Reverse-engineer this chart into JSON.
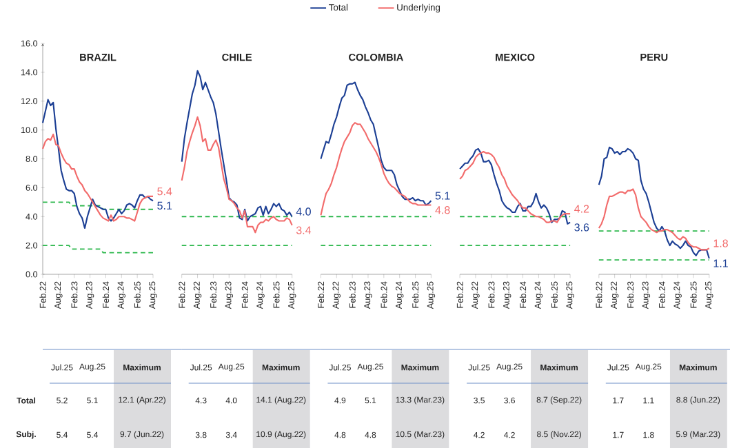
{
  "chart_data": [
    {
      "type": "line",
      "title": "BRAZIL",
      "x": [
        "2022-02",
        "2022-03",
        "2022-04",
        "2022-05",
        "2022-06",
        "2022-07",
        "2022-08",
        "2022-09",
        "2022-10",
        "2022-11",
        "2022-12",
        "2023-01",
        "2023-02",
        "2023-03",
        "2023-04",
        "2023-05",
        "2023-06",
        "2023-07",
        "2023-08",
        "2023-09",
        "2023-10",
        "2023-11",
        "2023-12",
        "2024-01",
        "2024-02",
        "2024-03",
        "2024-04",
        "2024-05",
        "2024-06",
        "2024-07",
        "2024-08",
        "2024-09",
        "2024-10",
        "2024-11",
        "2024-12",
        "2025-01",
        "2025-02",
        "2025-03",
        "2025-04",
        "2025-05",
        "2025-06",
        "2025-07",
        "2025-08"
      ],
      "xlim": [
        "2022-02",
        "2025-08"
      ],
      "xticks": [
        {
          "value": "2022-02",
          "label": "Feb.22"
        },
        {
          "value": "2022-08",
          "label": "Aug.22"
        },
        {
          "value": "2023-02",
          "label": "Feb.23"
        },
        {
          "value": "2023-08",
          "label": "Aug.23"
        },
        {
          "value": "2024-02",
          "label": "Feb.24"
        },
        {
          "value": "2024-08",
          "label": "Aug.24"
        },
        {
          "value": "2025-02",
          "label": "Feb.25"
        },
        {
          "value": "2025-08",
          "label": "Aug.25"
        }
      ],
      "ylim": [
        0,
        16
      ],
      "yticks": [
        {
          "value": 0,
          "label": "0.0"
        },
        {
          "value": 2,
          "label": "2.0"
        },
        {
          "value": 4,
          "label": "4.0"
        },
        {
          "value": 6,
          "label": "6.0"
        },
        {
          "value": 8,
          "label": "8.0"
        },
        {
          "value": 10,
          "label": "10.0"
        },
        {
          "value": 12,
          "label": "12.0"
        },
        {
          "value": 14,
          "label": "14.0"
        },
        {
          "value": 16,
          "label": "16.0"
        }
      ],
      "series": [
        {
          "type": "line",
          "color": "#2db84d",
          "line_style": "dashed",
          "x": [
            "2022-02",
            "2022-12",
            "2023-01",
            "2023-12",
            "2024-01",
            "2025-08"
          ],
          "values": [
            5,
            5,
            4.75,
            4.75,
            4.5,
            4.5
          ]
        },
        {
          "type": "line",
          "color": "#2db84d",
          "line_style": "dashed",
          "x": [
            "2022-02",
            "2022-12",
            "2023-01",
            "2023-12",
            "2024-01",
            "2025-08"
          ],
          "values": [
            2,
            2,
            1.75,
            1.75,
            1.5,
            1.5
          ]
        },
        {
          "color": "#1c3f94",
          "values": [
            10.5,
            11.3,
            12.1,
            11.7,
            11.9,
            10.1,
            8.7,
            7.2,
            6.5,
            5.9,
            5.8,
            5.8,
            5.6,
            4.7,
            4.2,
            3.9,
            3.2,
            4.0,
            4.6,
            5.2,
            4.8,
            4.7,
            4.6,
            4.5,
            4.5,
            3.9,
            3.7,
            3.9,
            4.2,
            4.5,
            4.2,
            4.4,
            4.8,
            4.9,
            4.8,
            4.6,
            5.1,
            5.5,
            5.5,
            5.3,
            5.4,
            5.2,
            5.1
          ],
          "value_labels": [
            null,
            null,
            null,
            null,
            null,
            null,
            null,
            null,
            null,
            null,
            null,
            null,
            null,
            null,
            null,
            null,
            null,
            null,
            null,
            null,
            null,
            null,
            null,
            null,
            null,
            null,
            null,
            null,
            null,
            null,
            null,
            null,
            null,
            null,
            null,
            null,
            null,
            null,
            null,
            null,
            null,
            null,
            "5.1"
          ]
        },
        {
          "color": "#f26b6b",
          "values": [
            8.7,
            9.2,
            9.4,
            9.3,
            9.7,
            9.0,
            8.9,
            8.4,
            8.0,
            7.7,
            7.6,
            7.3,
            7.3,
            6.8,
            6.4,
            6.2,
            5.8,
            5.6,
            5.3,
            5.0,
            4.7,
            4.4,
            4.1,
            3.9,
            3.8,
            3.7,
            4.1,
            3.7,
            3.8,
            4.0,
            4.0,
            4.0,
            3.9,
            3.9,
            3.8,
            3.7,
            4.3,
            4.9,
            5.2,
            5.3,
            5.4,
            5.4,
            5.4
          ],
          "value_labels": [
            null,
            null,
            null,
            null,
            null,
            null,
            null,
            null,
            null,
            null,
            null,
            null,
            null,
            null,
            null,
            null,
            null,
            null,
            null,
            null,
            null,
            null,
            null,
            null,
            null,
            null,
            null,
            null,
            null,
            null,
            null,
            null,
            null,
            null,
            null,
            null,
            null,
            null,
            null,
            null,
            null,
            null,
            "5.4"
          ]
        }
      ],
      "annotations": [
        "Total",
        "Subj.",
        "Jul.25",
        "Aug.25",
        "Maximum",
        "5.2",
        "5.1",
        "12.1 (Apr.22)",
        "5.4",
        "5.4",
        "9.7 (Jun.22)"
      ]
    },
    {
      "type": "line",
      "title": "CHILE",
      "x": [
        "2022-02",
        "2022-03",
        "2022-04",
        "2022-05",
        "2022-06",
        "2022-07",
        "2022-08",
        "2022-09",
        "2022-10",
        "2022-11",
        "2022-12",
        "2023-01",
        "2023-02",
        "2023-03",
        "2023-04",
        "2023-05",
        "2023-06",
        "2023-07",
        "2023-08",
        "2023-09",
        "2023-10",
        "2023-11",
        "2023-12",
        "2024-01",
        "2024-02",
        "2024-03",
        "2024-04",
        "2024-05",
        "2024-06",
        "2024-07",
        "2024-08",
        "2024-09",
        "2024-10",
        "2024-11",
        "2024-12",
        "2025-01",
        "2025-02",
        "2025-03",
        "2025-04",
        "2025-05",
        "2025-06",
        "2025-07",
        "2025-08"
      ],
      "xlim": [
        "2022-02",
        "2025-08"
      ],
      "xticks": [
        {
          "value": "2022-02",
          "label": "Feb.22"
        },
        {
          "value": "2022-08",
          "label": "Aug.22"
        },
        {
          "value": "2023-02",
          "label": "Feb.23"
        },
        {
          "value": "2023-08",
          "label": "Aug.23"
        },
        {
          "value": "2024-02",
          "label": "Feb.24"
        },
        {
          "value": "2024-08",
          "label": "Aug.24"
        },
        {
          "value": "2025-02",
          "label": "Feb.25"
        },
        {
          "value": "2025-08",
          "label": "Aug.25"
        }
      ],
      "ylim": [
        0,
        16
      ],
      "tick_labels": "x",
      "series": [
        {
          "color": "#1c3f94",
          "values": [
            7.8,
            9.4,
            10.5,
            11.5,
            12.5,
            13.1,
            14.1,
            13.7,
            12.8,
            13.3,
            12.8,
            12.3,
            11.9,
            11.1,
            9.9,
            8.7,
            7.6,
            6.5,
            5.3,
            5.1,
            5.0,
            4.8,
            3.9,
            3.8,
            4.5,
            3.7,
            4.0,
            4.1,
            4.2,
            4.6,
            4.7,
            4.1,
            4.7,
            4.2,
            4.5,
            4.9,
            4.7,
            4.9,
            4.5,
            4.4,
            4.1,
            4.3,
            4.0
          ],
          "value_labels": [
            null,
            null,
            null,
            null,
            null,
            null,
            null,
            null,
            null,
            null,
            null,
            null,
            null,
            null,
            null,
            null,
            null,
            null,
            null,
            null,
            null,
            null,
            null,
            null,
            null,
            null,
            null,
            null,
            null,
            null,
            null,
            null,
            null,
            null,
            null,
            null,
            null,
            null,
            null,
            null,
            null,
            null,
            "4.0"
          ]
        },
        {
          "color": "#f26b6b",
          "values": [
            6.5,
            7.4,
            8.5,
            9.2,
            9.8,
            10.3,
            10.9,
            10.3,
            9.2,
            9.4,
            8.6,
            8.6,
            9.0,
            9.3,
            8.8,
            7.7,
            6.6,
            6.0,
            5.2,
            5.1,
            4.9,
            4.6,
            4.4,
            3.9,
            4.4,
            3.3,
            3.3,
            3.3,
            2.9,
            3.4,
            3.6,
            3.6,
            3.8,
            3.7,
            3.9,
            4.0,
            3.8,
            3.7,
            3.7,
            3.7,
            3.9,
            3.8,
            3.4
          ],
          "value_labels": [
            null,
            null,
            null,
            null,
            null,
            null,
            null,
            null,
            null,
            null,
            null,
            null,
            null,
            null,
            null,
            null,
            null,
            null,
            null,
            null,
            null,
            null,
            null,
            null,
            null,
            null,
            null,
            null,
            null,
            null,
            null,
            null,
            null,
            null,
            null,
            null,
            null,
            null,
            null,
            null,
            null,
            null,
            "3.4"
          ]
        }
      ],
      "ref_lines": [
        {
          "axis": "y",
          "value": 4,
          "color": "#2db84d",
          "line_style": "dashed"
        },
        {
          "axis": "y",
          "value": 2,
          "color": "#2db84d",
          "line_style": "dashed"
        }
      ],
      "annotations": [
        "Jul.25",
        "Aug.25",
        "Maximum",
        "4.3",
        "4.0",
        "14.1 (Aug.22)",
        "3.8",
        "3.4",
        "10.9 (Aug.22)"
      ]
    },
    {
      "type": "line",
      "title": "COLOMBIA",
      "x": [
        "2022-02",
        "2022-03",
        "2022-04",
        "2022-05",
        "2022-06",
        "2022-07",
        "2022-08",
        "2022-09",
        "2022-10",
        "2022-11",
        "2022-12",
        "2023-01",
        "2023-02",
        "2023-03",
        "2023-04",
        "2023-05",
        "2023-06",
        "2023-07",
        "2023-08",
        "2023-09",
        "2023-10",
        "2023-11",
        "2023-12",
        "2024-01",
        "2024-02",
        "2024-03",
        "2024-04",
        "2024-05",
        "2024-06",
        "2024-07",
        "2024-08",
        "2024-09",
        "2024-10",
        "2024-11",
        "2024-12",
        "2025-01",
        "2025-02",
        "2025-03",
        "2025-04",
        "2025-05",
        "2025-06",
        "2025-07",
        "2025-08"
      ],
      "xlim": [
        "2022-02",
        "2025-08"
      ],
      "xticks": [
        {
          "value": "2022-02",
          "label": "Feb.22"
        },
        {
          "value": "2022-08",
          "label": "Aug.22"
        },
        {
          "value": "2023-02",
          "label": "Feb.23"
        },
        {
          "value": "2023-08",
          "label": "Aug.23"
        },
        {
          "value": "2024-02",
          "label": "Feb.24"
        },
        {
          "value": "2024-08",
          "label": "Aug.24"
        },
        {
          "value": "2025-02",
          "label": "Feb.25"
        },
        {
          "value": "2025-08",
          "label": "Aug.25"
        }
      ],
      "ylim": [
        0,
        16
      ],
      "tick_labels": "x",
      "legend": "top",
      "series": [
        {
          "name": "Total",
          "color": "#1c3f94",
          "values": [
            8.0,
            8.6,
            9.2,
            9.1,
            9.7,
            10.4,
            10.9,
            11.6,
            12.2,
            12.4,
            13.1,
            13.2,
            13.2,
            13.3,
            12.8,
            12.4,
            12.1,
            11.6,
            11.2,
            10.7,
            10.4,
            9.6,
            8.8,
            7.9,
            7.4,
            7.2,
            7.2,
            7.2,
            6.9,
            6.2,
            5.8,
            5.4,
            5.2,
            5.2,
            5.2,
            5.3,
            5.1,
            5.2,
            5.1,
            5.1,
            4.8,
            4.9,
            5.1
          ],
          "value_labels": [
            null,
            null,
            null,
            null,
            null,
            null,
            null,
            null,
            null,
            null,
            null,
            null,
            null,
            null,
            null,
            null,
            null,
            null,
            null,
            null,
            null,
            null,
            null,
            null,
            null,
            null,
            null,
            null,
            null,
            null,
            null,
            null,
            null,
            null,
            null,
            null,
            null,
            null,
            null,
            null,
            null,
            null,
            "5.1"
          ]
        },
        {
          "name": "Underlying",
          "color": "#f26b6b",
          "values": [
            4.1,
            4.9,
            5.6,
            5.9,
            6.3,
            6.9,
            7.4,
            8.1,
            8.7,
            9.2,
            9.5,
            9.8,
            10.3,
            10.5,
            10.4,
            10.4,
            10.1,
            9.8,
            9.4,
            9.1,
            8.8,
            8.5,
            8.1,
            7.6,
            7.0,
            6.6,
            6.3,
            6.1,
            6.0,
            5.8,
            5.6,
            5.5,
            5.4,
            5.2,
            5.0,
            4.9,
            4.9,
            4.8,
            4.8,
            4.8,
            4.8,
            4.8,
            4.8
          ],
          "value_labels": [
            null,
            null,
            null,
            null,
            null,
            null,
            null,
            null,
            null,
            null,
            null,
            null,
            null,
            null,
            null,
            null,
            null,
            null,
            null,
            null,
            null,
            null,
            null,
            null,
            null,
            null,
            null,
            null,
            null,
            null,
            null,
            null,
            null,
            null,
            null,
            null,
            null,
            null,
            null,
            null,
            null,
            null,
            "4.8"
          ]
        }
      ],
      "ref_lines": [
        {
          "axis": "y",
          "value": 4,
          "color": "#2db84d",
          "line_style": "dashed"
        },
        {
          "axis": "y",
          "value": 2,
          "color": "#2db84d",
          "line_style": "dashed"
        }
      ],
      "annotations": [
        "Jul.25",
        "Aug.25",
        "Maximum",
        "4.9",
        "5.1",
        "13.3 (Mar.23)",
        "4.8",
        "4.8",
        "10.5 (Mar.23)"
      ]
    },
    {
      "type": "line",
      "title": "MEXICO",
      "x": [
        "2022-02",
        "2022-03",
        "2022-04",
        "2022-05",
        "2022-06",
        "2022-07",
        "2022-08",
        "2022-09",
        "2022-10",
        "2022-11",
        "2022-12",
        "2023-01",
        "2023-02",
        "2023-03",
        "2023-04",
        "2023-05",
        "2023-06",
        "2023-07",
        "2023-08",
        "2023-09",
        "2023-10",
        "2023-11",
        "2023-12",
        "2024-01",
        "2024-02",
        "2024-03",
        "2024-04",
        "2024-05",
        "2024-06",
        "2024-07",
        "2024-08",
        "2024-09",
        "2024-10",
        "2024-11",
        "2024-12",
        "2025-01",
        "2025-02",
        "2025-03",
        "2025-04",
        "2025-05",
        "2025-06",
        "2025-07",
        "2025-08"
      ],
      "xlim": [
        "2022-02",
        "2025-08"
      ],
      "xticks": [
        {
          "value": "2022-02",
          "label": "Feb.22"
        },
        {
          "value": "2022-08",
          "label": "Aug.22"
        },
        {
          "value": "2023-02",
          "label": "Feb.23"
        },
        {
          "value": "2023-08",
          "label": "Aug.23"
        },
        {
          "value": "2024-02",
          "label": "Feb.24"
        },
        {
          "value": "2024-08",
          "label": "Aug.24"
        },
        {
          "value": "2025-02",
          "label": "Feb.25"
        },
        {
          "value": "2025-08",
          "label": "Aug.25"
        }
      ],
      "ylim": [
        0,
        16
      ],
      "tick_labels": "x",
      "series": [
        {
          "color": "#1c3f94",
          "values": [
            7.3,
            7.5,
            7.7,
            7.7,
            8.0,
            8.2,
            8.6,
            8.7,
            8.4,
            7.8,
            7.8,
            7.9,
            7.6,
            6.9,
            6.3,
            5.8,
            5.1,
            4.8,
            4.6,
            4.5,
            4.3,
            4.3,
            4.7,
            4.9,
            4.4,
            4.4,
            4.7,
            4.7,
            5.0,
            5.6,
            5.0,
            4.6,
            4.8,
            4.6,
            4.2,
            3.6,
            3.8,
            3.8,
            3.9,
            4.4,
            4.3,
            3.5,
            3.6
          ],
          "value_labels": [
            null,
            null,
            null,
            null,
            null,
            null,
            null,
            null,
            null,
            null,
            null,
            null,
            null,
            null,
            null,
            null,
            null,
            null,
            null,
            null,
            null,
            null,
            null,
            null,
            null,
            null,
            null,
            null,
            null,
            null,
            null,
            null,
            null,
            null,
            null,
            null,
            null,
            null,
            null,
            null,
            null,
            null,
            "3.6"
          ]
        },
        {
          "color": "#f26b6b",
          "values": [
            6.6,
            6.8,
            7.2,
            7.3,
            7.5,
            7.7,
            8.1,
            8.3,
            8.4,
            8.5,
            8.4,
            8.4,
            8.3,
            8.1,
            7.7,
            7.4,
            6.9,
            6.6,
            6.1,
            5.8,
            5.5,
            5.3,
            5.1,
            4.8,
            4.6,
            4.6,
            4.4,
            4.2,
            4.1,
            4.0,
            4.0,
            3.9,
            3.8,
            3.6,
            3.6,
            3.7,
            3.7,
            3.6,
            3.9,
            4.1,
            4.2,
            4.2,
            4.2
          ],
          "value_labels": [
            null,
            null,
            null,
            null,
            null,
            null,
            null,
            null,
            null,
            null,
            null,
            null,
            null,
            null,
            null,
            null,
            null,
            null,
            null,
            null,
            null,
            null,
            null,
            null,
            null,
            null,
            null,
            null,
            null,
            null,
            null,
            null,
            null,
            null,
            null,
            null,
            null,
            null,
            null,
            null,
            null,
            null,
            "4.2"
          ]
        }
      ],
      "ref_lines": [
        {
          "axis": "y",
          "value": 4,
          "color": "#2db84d",
          "line_style": "dashed"
        },
        {
          "axis": "y",
          "value": 2,
          "color": "#2db84d",
          "line_style": "dashed"
        }
      ],
      "annotations": [
        "Jul.25",
        "Aug.25",
        "Maximum",
        "3.5",
        "3.6",
        "8.7 (Sep.22)",
        "4.2",
        "4.2",
        "8.5 (Nov.22)"
      ]
    },
    {
      "type": "line",
      "title": "PERU",
      "x": [
        "2022-02",
        "2022-03",
        "2022-04",
        "2022-05",
        "2022-06",
        "2022-07",
        "2022-08",
        "2022-09",
        "2022-10",
        "2022-11",
        "2022-12",
        "2023-01",
        "2023-02",
        "2023-03",
        "2023-04",
        "2023-05",
        "2023-06",
        "2023-07",
        "2023-08",
        "2023-09",
        "2023-10",
        "2023-11",
        "2023-12",
        "2024-01",
        "2024-02",
        "2024-03",
        "2024-04",
        "2024-05",
        "2024-06",
        "2024-07",
        "2024-08",
        "2024-09",
        "2024-10",
        "2024-11",
        "2024-12",
        "2025-01",
        "2025-02",
        "2025-03",
        "2025-04",
        "2025-05",
        "2025-06",
        "2025-07",
        "2025-08"
      ],
      "xlim": [
        "2022-02",
        "2025-08"
      ],
      "xticks": [
        {
          "value": "2022-02",
          "label": "Feb.22"
        },
        {
          "value": "2022-08",
          "label": "Aug.22"
        },
        {
          "value": "2023-02",
          "label": "Feb.23"
        },
        {
          "value": "2023-08",
          "label": "Aug.23"
        },
        {
          "value": "2024-02",
          "label": "Feb.24"
        },
        {
          "value": "2024-08",
          "label": "Aug.24"
        },
        {
          "value": "2025-02",
          "label": "Feb.25"
        },
        {
          "value": "2025-08",
          "label": "Aug.25"
        }
      ],
      "ylim": [
        0,
        16
      ],
      "tick_labels": "x",
      "series": [
        {
          "color": "#1c3f94",
          "values": [
            6.2,
            6.8,
            8.0,
            8.1,
            8.8,
            8.7,
            8.4,
            8.5,
            8.3,
            8.5,
            8.5,
            8.7,
            8.6,
            8.4,
            8.0,
            7.9,
            6.5,
            5.9,
            5.6,
            5.0,
            4.3,
            3.6,
            3.2,
            3.0,
            3.3,
            3.0,
            2.4,
            2.0,
            2.3,
            2.1,
            2.0,
            1.8,
            2.0,
            2.3,
            2.0,
            1.9,
            1.5,
            1.3,
            1.6,
            1.7,
            1.7,
            1.7,
            1.1
          ],
          "value_labels": [
            null,
            null,
            null,
            null,
            null,
            null,
            null,
            null,
            null,
            null,
            null,
            null,
            null,
            null,
            null,
            null,
            null,
            null,
            null,
            null,
            null,
            null,
            null,
            null,
            null,
            null,
            null,
            null,
            null,
            null,
            null,
            null,
            null,
            null,
            null,
            null,
            null,
            null,
            null,
            null,
            null,
            null,
            "1.1"
          ]
        },
        {
          "color": "#f26b6b",
          "values": [
            3.2,
            3.5,
            4.0,
            4.8,
            5.4,
            5.4,
            5.5,
            5.6,
            5.7,
            5.7,
            5.6,
            5.8,
            5.8,
            5.9,
            5.5,
            4.6,
            4.0,
            3.8,
            3.6,
            3.3,
            3.1,
            3.0,
            2.9,
            3.0,
            3.0,
            3.1,
            3.1,
            3.0,
            2.9,
            2.7,
            2.5,
            2.4,
            2.6,
            2.5,
            2.2,
            2.0,
            1.9,
            1.9,
            1.8,
            1.7,
            1.7,
            1.7,
            1.8
          ],
          "value_labels": [
            null,
            null,
            null,
            null,
            null,
            null,
            null,
            null,
            null,
            null,
            null,
            null,
            null,
            null,
            null,
            null,
            null,
            null,
            null,
            null,
            null,
            null,
            null,
            null,
            null,
            null,
            null,
            null,
            null,
            null,
            null,
            null,
            null,
            null,
            null,
            null,
            null,
            null,
            null,
            null,
            null,
            null,
            "1.8"
          ]
        }
      ],
      "ref_lines": [
        {
          "axis": "y",
          "value": 3,
          "color": "#2db84d",
          "line_style": "dashed"
        },
        {
          "axis": "y",
          "value": 1,
          "color": "#2db84d",
          "line_style": "dashed"
        }
      ],
      "annotations": [
        "Jul.25",
        "Aug.25",
        "Maximum",
        "1.7",
        "1.1",
        "8.8 (Jun.22)",
        "1.7",
        "1.8",
        "5.9 (Mar.23)"
      ]
    }
  ]
}
